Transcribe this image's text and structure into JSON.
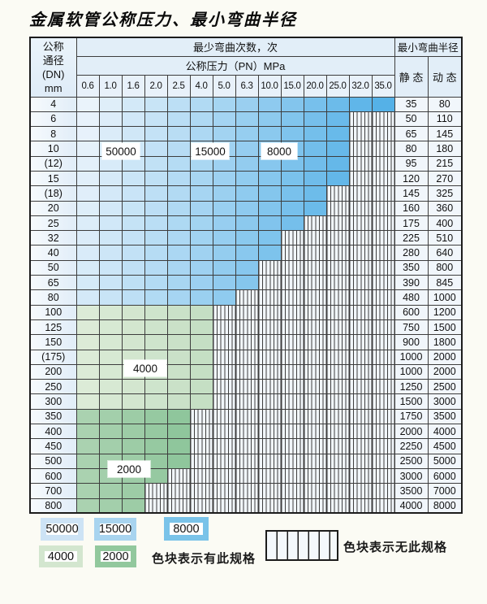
{
  "title": "金属软管公称压力、最小弯曲半径",
  "table": {
    "dn_header_lines": [
      "公称",
      "通径",
      "(DN)",
      "mm"
    ],
    "cycles_header": "最少弯曲次数，次",
    "pressure_header": "公称压力（PN）MPa",
    "pressure_values": [
      "0.6",
      "1.0",
      "1.6",
      "2.0",
      "2.5",
      "4.0",
      "5.0",
      "6.3",
      "10.0",
      "15.0",
      "20.0",
      "25.0",
      "32.0",
      "35.0"
    ],
    "radius_header": "最小弯曲半径",
    "static_header": "静 态",
    "dynamic_header": "动 态",
    "rows": [
      {
        "dn": "4",
        "zone": "blue",
        "colored": 14,
        "static": "35",
        "dynamic": "80"
      },
      {
        "dn": "6",
        "zone": "blue",
        "colored": 12,
        "static": "50",
        "dynamic": "110"
      },
      {
        "dn": "8",
        "zone": "blue",
        "colored": 12,
        "static": "65",
        "dynamic": "145"
      },
      {
        "dn": "10",
        "zone": "blue",
        "colored": 12,
        "static": "80",
        "dynamic": "180"
      },
      {
        "dn": "(12)",
        "zone": "blue",
        "colored": 12,
        "static": "95",
        "dynamic": "215"
      },
      {
        "dn": "15",
        "zone": "blue",
        "colored": 12,
        "static": "120",
        "dynamic": "270"
      },
      {
        "dn": "(18)",
        "zone": "blue",
        "colored": 11,
        "static": "145",
        "dynamic": "325"
      },
      {
        "dn": "20",
        "zone": "blue",
        "colored": 11,
        "static": "160",
        "dynamic": "360"
      },
      {
        "dn": "25",
        "zone": "blue",
        "colored": 10,
        "static": "175",
        "dynamic": "400"
      },
      {
        "dn": "32",
        "zone": "blue",
        "colored": 9,
        "static": "225",
        "dynamic": "510"
      },
      {
        "dn": "40",
        "zone": "blue",
        "colored": 9,
        "static": "280",
        "dynamic": "640"
      },
      {
        "dn": "50",
        "zone": "blue",
        "colored": 8,
        "static": "350",
        "dynamic": "800"
      },
      {
        "dn": "65",
        "zone": "blue",
        "colored": 8,
        "static": "390",
        "dynamic": "845"
      },
      {
        "dn": "80",
        "zone": "blue",
        "colored": 7,
        "static": "480",
        "dynamic": "1000"
      },
      {
        "dn": "100",
        "zone": "green-light",
        "colored": 6,
        "static": "600",
        "dynamic": "1200"
      },
      {
        "dn": "125",
        "zone": "green-light",
        "colored": 6,
        "static": "750",
        "dynamic": "1500"
      },
      {
        "dn": "150",
        "zone": "green-light",
        "colored": 6,
        "static": "900",
        "dynamic": "1800"
      },
      {
        "dn": "(175)",
        "zone": "green-light",
        "colored": 6,
        "static": "1000",
        "dynamic": "2000"
      },
      {
        "dn": "200",
        "zone": "green-light",
        "colored": 6,
        "static": "1000",
        "dynamic": "2000"
      },
      {
        "dn": "250",
        "zone": "green-light",
        "colored": 6,
        "static": "1250",
        "dynamic": "2500"
      },
      {
        "dn": "300",
        "zone": "green-light",
        "colored": 6,
        "static": "1500",
        "dynamic": "3000"
      },
      {
        "dn": "350",
        "zone": "green-dark",
        "colored": 5,
        "static": "1750",
        "dynamic": "3500"
      },
      {
        "dn": "400",
        "zone": "green-dark",
        "colored": 5,
        "static": "2000",
        "dynamic": "4000"
      },
      {
        "dn": "450",
        "zone": "green-dark",
        "colored": 5,
        "static": "2250",
        "dynamic": "4500"
      },
      {
        "dn": "500",
        "zone": "green-dark",
        "colored": 5,
        "static": "2500",
        "dynamic": "5000"
      },
      {
        "dn": "600",
        "zone": "green-dark",
        "colored": 4,
        "static": "3000",
        "dynamic": "6000"
      },
      {
        "dn": "700",
        "zone": "green-dark",
        "colored": 3,
        "static": "3500",
        "dynamic": "7000"
      },
      {
        "dn": "800",
        "zone": "green-dark",
        "colored": 3,
        "static": "4000",
        "dynamic": "8000"
      }
    ],
    "cycle_labels": [
      "50000",
      "15000",
      "8000",
      "4000",
      "2000"
    ]
  },
  "legend": {
    "has_spec_items": [
      {
        "label": "50000",
        "color": "#cde3f5"
      },
      {
        "label": "15000",
        "color": "#a8d4ef"
      },
      {
        "label": "8000",
        "color": "#7ac3e9"
      },
      {
        "label": "4000",
        "color": "#d3e6cf"
      },
      {
        "label": "2000",
        "color": "#92c89d"
      }
    ],
    "has_spec_text": "色块表示有此规格",
    "no_spec_text": "色块表示无此规格"
  },
  "colors": {
    "blue_light": "#eaf3fb",
    "blue_dark": "#55b1e7",
    "green4_light": "#dcebd7",
    "green4_dark": "#c5dfc4",
    "green2_light": "#aad2b0",
    "green2_dark": "#8fc69c"
  }
}
